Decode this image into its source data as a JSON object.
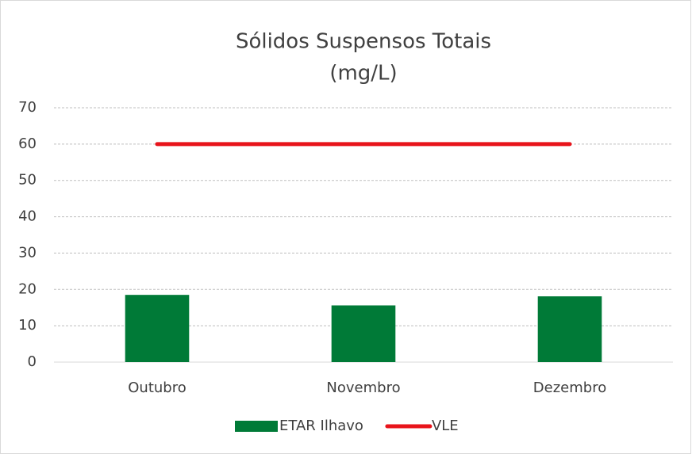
{
  "chart_data": {
    "type": "bar",
    "title": [
      "Sólidos Suspensos Totais",
      "(mg/L)"
    ],
    "categories": [
      "Outubro",
      "Novembro",
      "Dezembro"
    ],
    "series": [
      {
        "name": "ETAR Ilhavo",
        "type": "bar",
        "color": "#007a37",
        "values": [
          18.5,
          15.6,
          18.1
        ]
      },
      {
        "name": "VLE",
        "type": "line",
        "color": "#e8141b",
        "values": [
          60,
          60,
          60
        ]
      }
    ],
    "ylim": [
      0,
      70
    ],
    "yticks": [
      0,
      10,
      20,
      30,
      40,
      50,
      60,
      70
    ],
    "grid": true,
    "legend": "bottom"
  }
}
